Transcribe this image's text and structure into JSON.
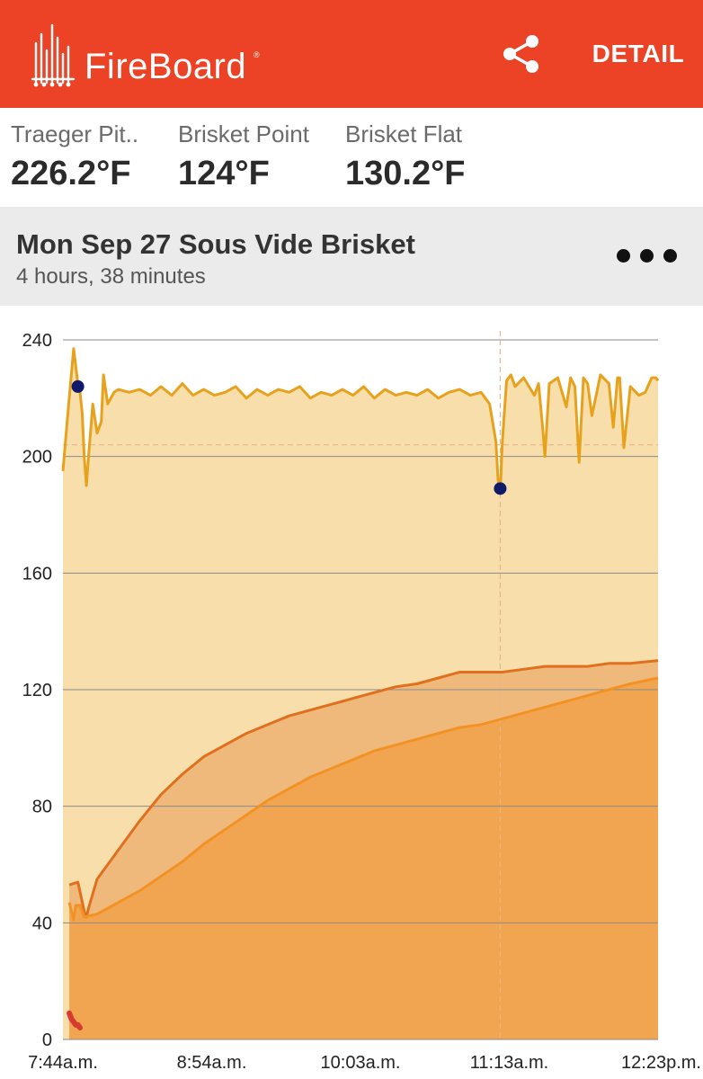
{
  "app": {
    "brand": "FireBoard",
    "brand_mark": "®",
    "detail_label": "DETAIL",
    "accent_color": "#ec4226",
    "icons": [
      "fireboard-logo-icon",
      "share-icon",
      "more-dots-icon"
    ]
  },
  "probes": [
    {
      "name": "Traeger Pit..",
      "temp": "226.2°F"
    },
    {
      "name": "Brisket Point",
      "temp": "124°F"
    },
    {
      "name": "Brisket Flat",
      "temp": "130.2°F"
    }
  ],
  "session": {
    "title": "Mon Sep 27 Sous Vide Brisket",
    "duration": "4 hours, 38 minutes"
  },
  "chart_data": {
    "type": "area",
    "x_tick_labels": [
      "7:44a.m.",
      "8:54a.m.",
      "10:03a.m.",
      "11:13a.m.",
      "12:23p.m."
    ],
    "y_ticks": [
      0,
      40,
      80,
      120,
      160,
      200,
      240
    ],
    "ylim": [
      0,
      240
    ],
    "grid": true,
    "crosshair_time": "11:09a.m.",
    "colors": {
      "pit_line": "#e6a21c",
      "pit_fill": "#f7deaa",
      "flat_line": "#e0701e",
      "flat_fill": "#f0b97c",
      "point_line": "#f29225",
      "point_fill": "#f2a550",
      "marker": "#0f1a6a",
      "ambient": "#d63a30"
    },
    "series": [
      {
        "key": "pit",
        "x": [
          "7:44",
          "7:46",
          "7:49",
          "7:51",
          "7:52",
          "7:53",
          "7:54",
          "7:55",
          "7:56",
          "7:58",
          "8:00",
          "8:02",
          "8:03",
          "8:05",
          "8:08",
          "8:10",
          "8:15",
          "8:20",
          "8:25",
          "8:30",
          "8:35",
          "8:40",
          "8:45",
          "8:50",
          "8:55",
          "9:00",
          "9:05",
          "9:10",
          "9:15",
          "9:20",
          "9:25",
          "9:30",
          "9:35",
          "9:40",
          "9:45",
          "9:50",
          "9:55",
          "10:00",
          "10:05",
          "10:10",
          "10:15",
          "10:20",
          "10:25",
          "10:30",
          "10:35",
          "10:40",
          "10:45",
          "10:50",
          "10:55",
          "11:00",
          "11:04",
          "11:07",
          "11:08",
          "11:09",
          "11:10",
          "11:12",
          "11:14",
          "11:16",
          "11:20",
          "11:25",
          "11:27",
          "11:29",
          "11:30",
          "11:32",
          "11:36",
          "11:40",
          "11:42",
          "11:44",
          "11:46",
          "11:48",
          "11:50",
          "11:52",
          "11:56",
          "12:00",
          "12:02",
          "12:04",
          "12:05",
          "12:07",
          "12:10",
          "12:14",
          "12:17",
          "12:20",
          "12:22",
          "12:23"
        ],
        "y": [
          195,
          212,
          237,
          225,
          222,
          215,
          200,
          190,
          200,
          218,
          208,
          212,
          228,
          218,
          222,
          223,
          222,
          223,
          221,
          224,
          221,
          225,
          221,
          223,
          221,
          222,
          224,
          220,
          223,
          221,
          223,
          222,
          224,
          220,
          222,
          221,
          223,
          221,
          224,
          220,
          223,
          221,
          222,
          221,
          223,
          220,
          222,
          223,
          221,
          222,
          218,
          205,
          192,
          188,
          205,
          226,
          228,
          224,
          227,
          221,
          225,
          209,
          200,
          225,
          227,
          217,
          227,
          224,
          198,
          227,
          225,
          214,
          228,
          225,
          210,
          227,
          227,
          203,
          224,
          221,
          222,
          227,
          227,
          226
        ]
      },
      {
        "key": "flat",
        "name": "Brisket Flat",
        "x": [
          "7:47",
          "7:51",
          "7:54",
          "7:55",
          "7:56",
          "8:00",
          "8:10",
          "8:20",
          "8:30",
          "8:40",
          "8:50",
          "9:00",
          "9:10",
          "9:20",
          "9:30",
          "9:40",
          "9:50",
          "10:00",
          "10:10",
          "10:20",
          "10:30",
          "10:40",
          "10:50",
          "11:00",
          "11:05",
          "11:10",
          "11:20",
          "11:30",
          "11:40",
          "11:50",
          "12:00",
          "12:10",
          "12:23"
        ],
        "y": [
          53,
          54,
          44,
          42,
          45,
          55,
          65,
          75,
          84,
          91,
          97,
          101,
          105,
          108,
          111,
          113,
          115,
          117,
          119,
          121,
          122,
          124,
          126,
          126,
          126,
          126,
          127,
          128,
          128,
          128,
          129,
          129,
          130
        ]
      },
      {
        "key": "point",
        "name": "Brisket Point",
        "x": [
          "7:47",
          "7:49",
          "7:50",
          "7:52",
          "7:54",
          "8:00",
          "8:10",
          "8:20",
          "8:30",
          "8:40",
          "8:50",
          "9:00",
          "9:10",
          "9:20",
          "9:30",
          "9:40",
          "9:50",
          "10:00",
          "10:10",
          "10:20",
          "10:30",
          "10:40",
          "10:50",
          "11:00",
          "11:05",
          "11:10",
          "11:20",
          "11:30",
          "11:40",
          "11:50",
          "12:00",
          "12:10",
          "12:23"
        ],
        "y": [
          47,
          41,
          46,
          46,
          42,
          43,
          47,
          51,
          56,
          61,
          67,
          72,
          77,
          82,
          86,
          90,
          93,
          96,
          99,
          101,
          103,
          105,
          107,
          108,
          109,
          110,
          112,
          114,
          116,
          118,
          120,
          122,
          124
        ]
      },
      {
        "key": "ambient",
        "x": [
          "7:47",
          "7:48",
          "7:49",
          "7:50",
          "7:51",
          "7:52"
        ],
        "y": [
          9,
          7,
          6,
          5,
          5,
          4
        ]
      }
    ],
    "markers": [
      {
        "series": "pit",
        "x": "7:51",
        "y": 224
      },
      {
        "series": "pit",
        "x": "11:09",
        "y": 189
      }
    ]
  }
}
